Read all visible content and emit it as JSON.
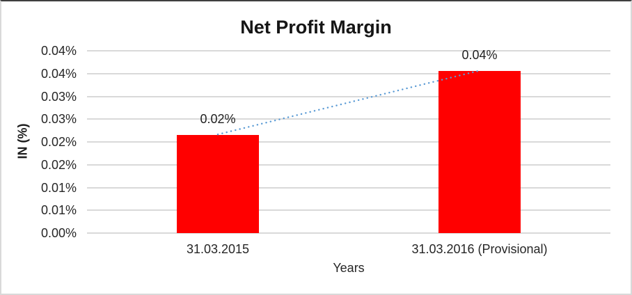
{
  "chart_data": {
    "type": "bar",
    "title": "Net Profit Margin",
    "categories": [
      "31.03.2015",
      "31.03.2016 (Provisional)"
    ],
    "series": [
      {
        "name": "Net Profit Margin",
        "values_percent": [
          0.0215,
          0.0355
        ],
        "data_labels": [
          "0.02%",
          "0.04%"
        ]
      }
    ],
    "xlabel": "Years",
    "ylabel": "IN (%)",
    "ylim_percent": [
      0,
      0.04
    ],
    "y_tick_labels_top_to_bottom": [
      "0.04%",
      "0.04%",
      "0.03%",
      "0.03%",
      "0.02%",
      "0.02%",
      "0.01%",
      "0.01%",
      "0.00%"
    ],
    "grid": true,
    "legend": "none",
    "colors": {
      "bar": "#FF0000",
      "gridline": "#D9D9D9",
      "trendline": "#5B9BD5",
      "text": "#262626"
    },
    "trendline": {
      "style": "dotted",
      "color": "#5B9BD5",
      "connects": [
        "top of bar 31.03.2015",
        "top of bar 31.03.2016 (Provisional)"
      ]
    }
  }
}
